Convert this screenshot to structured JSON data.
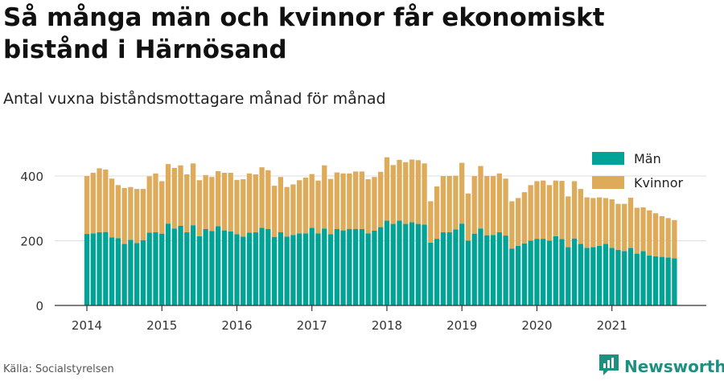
{
  "header": {
    "title": "Så många män och kvinnor får ekonomiskt bistånd i Härnösand",
    "subtitle": "Antal vuxna biståndsmottagare månad för månad"
  },
  "footer": {
    "source": "Källa: Socialstyrelsen",
    "brand": "Newsworthy"
  },
  "colors": {
    "man": "#00a396",
    "kvinnor": "#ddab5a",
    "grid": "#dddddd",
    "axis": "#333333"
  },
  "chart_data": {
    "type": "bar",
    "stacked": true,
    "x_start": "2014-01",
    "x_end": "2021-11",
    "x_ticks": [
      "2014",
      "2015",
      "2016",
      "2017",
      "2018",
      "2019",
      "2020",
      "2021"
    ],
    "y_ticks": [
      0,
      200,
      400
    ],
    "ylim": [
      0,
      460
    ],
    "grid": true,
    "legend_position": "top-right",
    "series": [
      {
        "name": "Män",
        "values": [
          221,
          223,
          226,
          227,
          210,
          208,
          190,
          203,
          193,
          202,
          225,
          226,
          222,
          253,
          238,
          246,
          226,
          248,
          214,
          236,
          230,
          245,
          232,
          229,
          220,
          213,
          225,
          226,
          240,
          236,
          212,
          226,
          213,
          218,
          223,
          223,
          240,
          223,
          238,
          220,
          236,
          232,
          236,
          236,
          236,
          223,
          231,
          242,
          262,
          252,
          262,
          252,
          257,
          252,
          250,
          194,
          206,
          226,
          226,
          235,
          253,
          200,
          222,
          238,
          217,
          218,
          226,
          216,
          176,
          184,
          192,
          200,
          206,
          206,
          200,
          214,
          205,
          180,
          207,
          190,
          178,
          180,
          184,
          190,
          178,
          172,
          168,
          178,
          160,
          168,
          154,
          152,
          150,
          148,
          146
        ]
      },
      {
        "name": "Kvinnor",
        "values": [
          179,
          187,
          198,
          193,
          182,
          164,
          173,
          163,
          167,
          158,
          174,
          182,
          162,
          184,
          187,
          187,
          179,
          191,
          173,
          167,
          167,
          170,
          178,
          181,
          168,
          177,
          183,
          179,
          187,
          182,
          158,
          171,
          153,
          156,
          164,
          172,
          166,
          163,
          195,
          171,
          175,
          176,
          172,
          178,
          178,
          167,
          166,
          171,
          196,
          182,
          188,
          191,
          194,
          197,
          189,
          128,
          162,
          174,
          174,
          166,
          188,
          146,
          178,
          193,
          183,
          182,
          182,
          176,
          146,
          148,
          158,
          172,
          178,
          180,
          172,
          172,
          180,
          157,
          177,
          170,
          156,
          152,
          150,
          142,
          150,
          142,
          146,
          155,
          142,
          135,
          140,
          133,
          126,
          122,
          118
        ]
      }
    ]
  }
}
